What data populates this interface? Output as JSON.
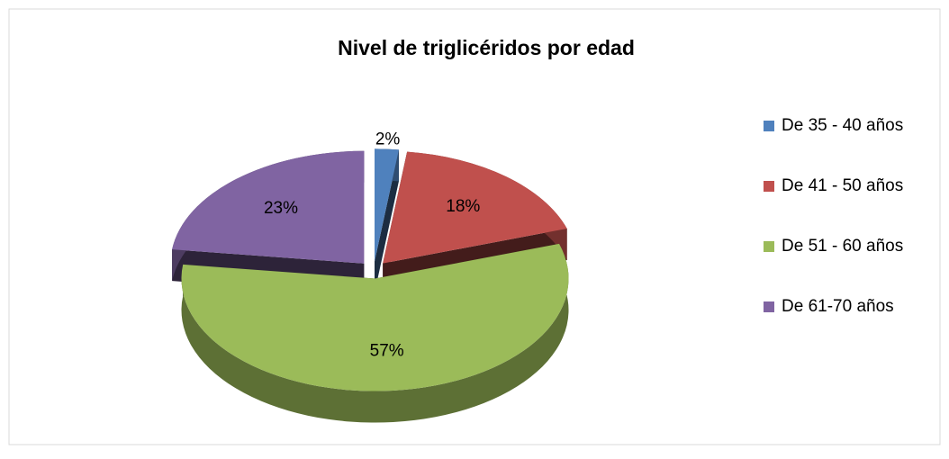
{
  "chart_data": {
    "type": "pie",
    "title": "Nivel de triglicéridos por edad",
    "categories": [
      "De 35 - 40 años",
      "De 41 - 50 años",
      "De 51 - 60 años",
      "De 61-70 años"
    ],
    "values": [
      2,
      18,
      57,
      23
    ],
    "value_labels": [
      "2%",
      "18%",
      "57%",
      "23%"
    ],
    "colors": [
      "#4f81bd",
      "#c0504d",
      "#9bbb59",
      "#8064a2"
    ],
    "legend": "right"
  }
}
